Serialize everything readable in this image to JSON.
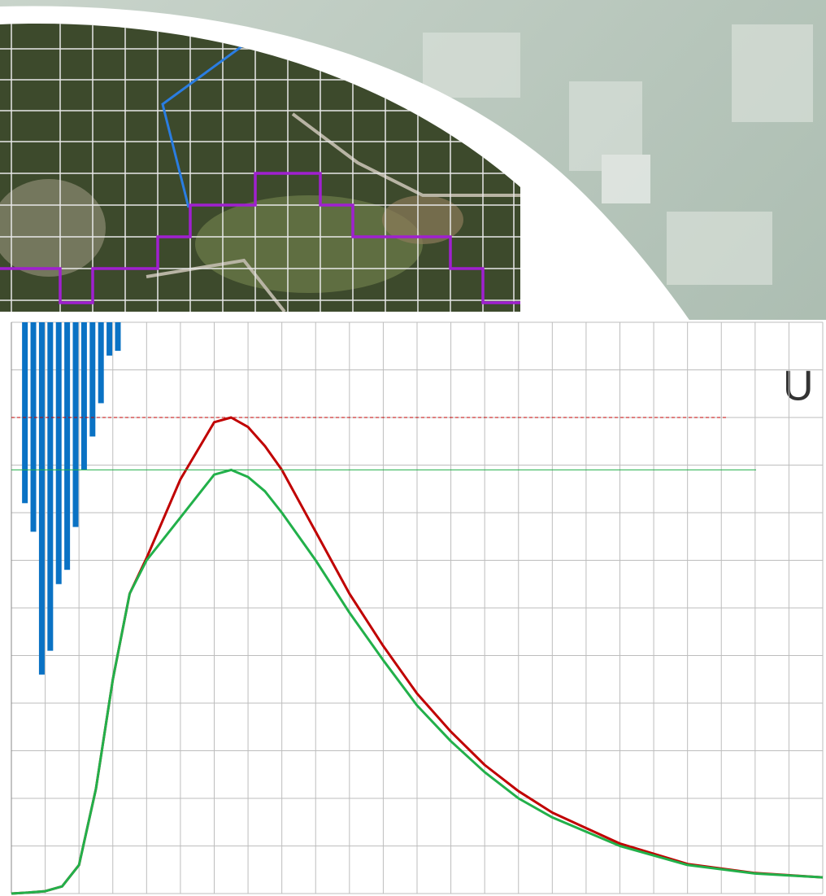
{
  "slide_text": "U",
  "chart_data": {
    "type": "line",
    "xlim": [
      0,
      24
    ],
    "ylim": [
      0,
      12
    ],
    "y2lim": [
      0,
      12
    ],
    "y2_inverted": true,
    "xticks": [
      0,
      1,
      2,
      3,
      4,
      5,
      6,
      7,
      8,
      9,
      10,
      11,
      12,
      13,
      14,
      15,
      16,
      17,
      18,
      19,
      20,
      21,
      22,
      23,
      24
    ],
    "yticks": [
      0,
      1,
      2,
      3,
      4,
      5,
      6,
      7,
      8,
      9,
      10,
      11,
      12
    ],
    "grid": true,
    "series": [
      {
        "type": "bar",
        "axis": "y2",
        "color": "#0a72c4",
        "x": [
          0.4,
          0.65,
          0.9,
          1.15,
          1.4,
          1.65,
          1.9,
          2.15,
          2.4,
          2.65,
          2.9,
          3.15
        ],
        "values": [
          3.8,
          4.4,
          7.4,
          6.9,
          5.5,
          5.2,
          4.3,
          3.1,
          2.4,
          1.7,
          0.7,
          0.6
        ]
      },
      {
        "type": "line",
        "color": "#c00000",
        "peak_line_dashed": true,
        "x": [
          0,
          0.5,
          1,
          1.5,
          2,
          2.5,
          3,
          3.5,
          4,
          5,
          6,
          6.5,
          7,
          7.5,
          8,
          9,
          10,
          11,
          12,
          13,
          14,
          15,
          16,
          18,
          20,
          22,
          24
        ],
        "values": [
          0,
          0.02,
          0.05,
          0.15,
          0.6,
          2.2,
          4.5,
          6.3,
          7.05,
          8.7,
          9.9,
          10.0,
          9.8,
          9.4,
          8.9,
          7.6,
          6.3,
          5.2,
          4.2,
          3.4,
          2.7,
          2.15,
          1.7,
          1.05,
          0.62,
          0.43,
          0.34
        ],
        "peak": 10.0
      },
      {
        "type": "line",
        "color": "#22b04a",
        "peak_line_dashed": false,
        "x": [
          0,
          0.5,
          1,
          1.5,
          2,
          2.5,
          3,
          3.5,
          4,
          5,
          6,
          6.5,
          7,
          7.5,
          8,
          9,
          10,
          11,
          12,
          13,
          14,
          15,
          16,
          18,
          20,
          22,
          24
        ],
        "values": [
          0,
          0.02,
          0.05,
          0.15,
          0.6,
          2.2,
          4.5,
          6.3,
          7.0,
          7.9,
          8.8,
          8.9,
          8.75,
          8.45,
          8.0,
          7.0,
          5.9,
          4.9,
          3.95,
          3.2,
          2.55,
          2.0,
          1.6,
          1.0,
          0.6,
          0.42,
          0.34
        ],
        "peak": 8.9
      }
    ]
  }
}
